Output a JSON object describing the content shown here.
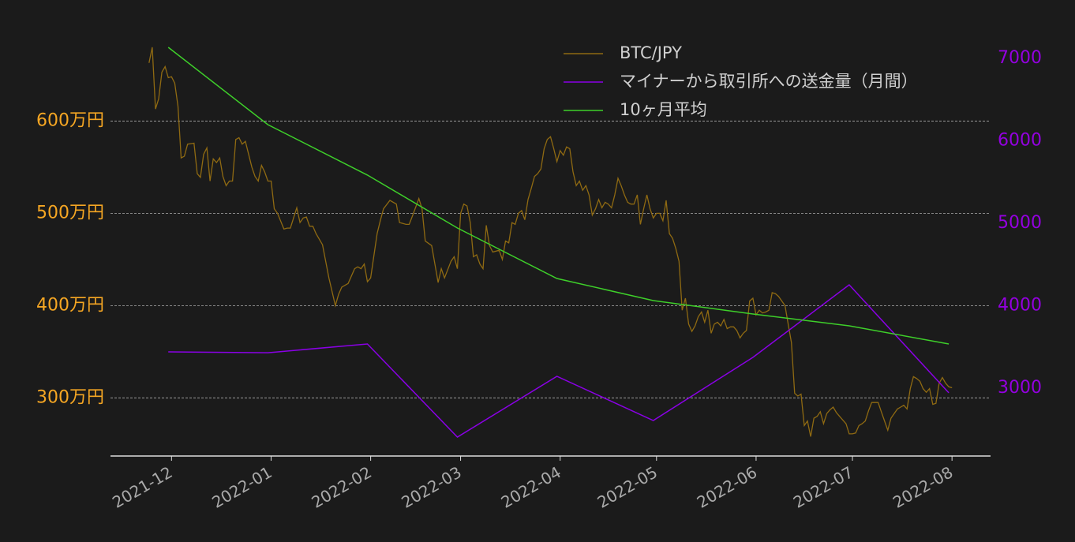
{
  "chart_data": {
    "type": "line",
    "xlim": [
      "2021-11-12",
      "2022-08-13"
    ],
    "xticks": [
      "2021-12",
      "2022-01",
      "2022-02",
      "2022-03",
      "2022-04",
      "2022-05",
      "2022-06",
      "2022-07",
      "2022-08"
    ],
    "ylim": [
      237,
      697
    ],
    "yticks": [
      {
        "value": 300,
        "label": "300万円"
      },
      {
        "value": 400,
        "label": "400万円"
      },
      {
        "value": 500,
        "label": "500万円"
      },
      {
        "value": 600,
        "label": "600万円"
      }
    ],
    "y2lim": [
      2177,
      7325
    ],
    "y2ticks": [
      3000,
      4000,
      5000,
      6000,
      7000
    ],
    "grid": true,
    "legend": "upper right",
    "ytick_color": "#f5a623",
    "y2tick_color": "#9400e0",
    "series": [
      {
        "name": "BTC/JPY",
        "color": "#8f6a12",
        "axis": "y",
        "x": [
          "2021-11-24",
          "2021-11-25",
          "2021-11-26",
          "2021-11-27",
          "2021-11-28",
          "2021-11-29",
          "2021-11-30",
          "2021-12-01",
          "2021-12-02",
          "2021-12-03",
          "2021-12-04",
          "2021-12-05",
          "2021-12-06",
          "2021-12-08",
          "2021-12-09",
          "2021-12-10",
          "2021-12-11",
          "2021-12-12",
          "2021-12-13",
          "2021-12-14",
          "2021-12-15",
          "2021-12-16",
          "2021-12-17",
          "2021-12-18",
          "2021-12-19",
          "2021-12-20",
          "2021-12-21",
          "2021-12-22",
          "2021-12-23",
          "2021-12-24",
          "2021-12-26",
          "2021-12-27",
          "2021-12-28",
          "2021-12-29",
          "2021-12-30",
          "2021-12-31",
          "2022-01-01",
          "2022-01-02",
          "2022-01-03",
          "2022-01-05",
          "2022-01-06",
          "2022-01-07",
          "2022-01-09",
          "2022-01-10",
          "2022-01-11",
          "2022-01-12",
          "2022-01-13",
          "2022-01-14",
          "2022-01-15",
          "2022-01-17",
          "2022-01-19",
          "2022-01-21",
          "2022-01-22",
          "2022-01-23",
          "2022-01-25",
          "2022-01-27",
          "2022-01-28",
          "2022-01-29",
          "2022-01-30",
          "2022-01-31",
          "2022-02-01",
          "2022-02-03",
          "2022-02-04",
          "2022-02-05",
          "2022-02-07",
          "2022-02-09",
          "2022-02-10",
          "2022-02-12",
          "2022-02-13",
          "2022-02-14",
          "2022-02-16",
          "2022-02-17",
          "2022-02-18",
          "2022-02-20",
          "2022-02-21",
          "2022-02-22",
          "2022-02-23",
          "2022-02-24",
          "2022-02-26",
          "2022-02-27",
          "2022-02-28",
          "2022-03-01",
          "2022-03-02",
          "2022-03-03",
          "2022-03-04",
          "2022-03-05",
          "2022-03-06",
          "2022-03-07",
          "2022-03-08",
          "2022-03-09",
          "2022-03-10",
          "2022-03-11",
          "2022-03-13",
          "2022-03-14",
          "2022-03-15",
          "2022-03-16",
          "2022-03-17",
          "2022-03-18",
          "2022-03-19",
          "2022-03-20",
          "2022-03-21",
          "2022-03-22",
          "2022-03-23",
          "2022-03-24",
          "2022-03-25",
          "2022-03-26",
          "2022-03-27",
          "2022-03-28",
          "2022-03-29",
          "2022-03-30",
          "2022-03-31",
          "2022-04-01",
          "2022-04-02",
          "2022-04-03",
          "2022-04-04",
          "2022-04-05",
          "2022-04-06",
          "2022-04-07",
          "2022-04-08",
          "2022-04-09",
          "2022-04-10",
          "2022-04-11",
          "2022-04-12",
          "2022-04-13",
          "2022-04-14",
          "2022-04-15",
          "2022-04-16",
          "2022-04-17",
          "2022-04-18",
          "2022-04-19",
          "2022-04-20",
          "2022-04-21",
          "2022-04-22",
          "2022-04-23",
          "2022-04-24",
          "2022-04-25",
          "2022-04-26",
          "2022-04-27",
          "2022-04-28",
          "2022-04-29",
          "2022-04-30",
          "2022-05-01",
          "2022-05-02",
          "2022-05-03",
          "2022-05-04",
          "2022-05-05",
          "2022-05-06",
          "2022-05-07",
          "2022-05-08",
          "2022-05-09",
          "2022-05-10",
          "2022-05-11",
          "2022-05-12",
          "2022-05-13",
          "2022-05-14",
          "2022-05-15",
          "2022-05-16",
          "2022-05-17",
          "2022-05-18",
          "2022-05-19",
          "2022-05-20",
          "2022-05-21",
          "2022-05-22",
          "2022-05-23",
          "2022-05-24",
          "2022-05-25",
          "2022-05-26",
          "2022-05-27",
          "2022-05-28",
          "2022-05-29",
          "2022-05-30",
          "2022-05-31",
          "2022-06-01",
          "2022-06-02",
          "2022-06-03",
          "2022-06-04",
          "2022-06-05",
          "2022-06-06",
          "2022-06-07",
          "2022-06-08",
          "2022-06-09",
          "2022-06-10",
          "2022-06-11",
          "2022-06-12",
          "2022-06-13",
          "2022-06-14",
          "2022-06-15",
          "2022-06-16",
          "2022-06-17",
          "2022-06-18",
          "2022-06-19",
          "2022-06-20",
          "2022-06-21",
          "2022-06-22",
          "2022-06-23",
          "2022-06-24",
          "2022-06-25",
          "2022-06-26",
          "2022-06-27",
          "2022-06-28",
          "2022-06-29",
          "2022-06-30",
          "2022-07-01",
          "2022-07-02",
          "2022-07-03",
          "2022-07-04",
          "2022-07-05",
          "2022-07-06",
          "2022-07-07",
          "2022-07-08",
          "2022-07-09",
          "2022-07-10",
          "2022-07-11",
          "2022-07-12",
          "2022-07-13",
          "2022-07-14",
          "2022-07-15",
          "2022-07-16",
          "2022-07-17",
          "2022-07-18",
          "2022-07-19",
          "2022-07-20",
          "2022-07-21",
          "2022-07-22",
          "2022-07-23",
          "2022-07-24",
          "2022-07-25",
          "2022-07-26",
          "2022-07-27",
          "2022-07-28",
          "2022-07-29",
          "2022-07-30",
          "2022-07-31",
          "2022-08-01"
        ],
        "values": [
          663,
          680,
          613,
          624,
          653,
          659,
          647,
          648,
          641,
          616,
          560,
          562,
          575,
          576,
          543,
          539,
          564,
          571,
          535,
          559,
          555,
          560,
          540,
          530,
          535,
          535,
          580,
          582,
          575,
          578,
          550,
          540,
          535,
          552,
          545,
          535,
          535,
          505,
          500,
          483,
          484,
          484,
          506,
          490,
          495,
          496,
          486,
          486,
          478,
          466,
          430,
          400,
          412,
          420,
          424,
          440,
          442,
          440,
          445,
          426,
          430,
          478,
          492,
          505,
          514,
          510,
          490,
          488,
          488,
          497,
          516,
          505,
          470,
          465,
          445,
          425,
          440,
          430,
          448,
          453,
          440,
          500,
          510,
          508,
          490,
          453,
          455,
          445,
          440,
          487,
          465,
          458,
          460,
          450,
          470,
          468,
          490,
          488,
          500,
          503,
          493,
          515,
          527,
          540,
          543,
          548,
          570,
          580,
          583,
          570,
          556,
          568,
          563,
          572,
          570,
          545,
          530,
          535,
          525,
          530,
          520,
          498,
          505,
          515,
          506,
          512,
          510,
          506,
          520,
          538,
          530,
          520,
          512,
          510,
          510,
          520,
          488,
          505,
          520,
          505,
          495,
          500,
          500,
          492,
          514,
          478,
          473,
          462,
          448,
          395,
          408,
          380,
          372,
          378,
          388,
          393,
          382,
          395,
          370,
          380,
          382,
          378,
          385,
          375,
          377,
          377,
          373,
          365,
          370,
          373,
          405,
          408,
          390,
          395,
          392,
          393,
          395,
          414,
          413,
          410,
          405,
          400,
          380,
          360,
          305,
          302,
          304,
          270,
          275,
          258,
          278,
          280,
          285,
          272,
          283,
          287,
          290,
          284,
          280,
          276,
          272,
          261,
          261,
          262,
          270,
          272,
          275,
          286,
          295,
          295,
          295,
          285,
          275,
          265,
          278,
          283,
          288,
          290,
          292,
          288,
          310,
          323,
          321,
          318,
          310,
          306,
          310,
          293,
          294,
          316,
          322,
          316,
          312,
          311
        ]
      },
      {
        "name": "マイナーから取引所への送金量（月間）",
        "color": "#8a00e6",
        "axis": "y2",
        "x": [
          "2021-11-30",
          "2021-12-31",
          "2022-01-31",
          "2022-02-28",
          "2022-03-31",
          "2022-04-30",
          "2022-05-31",
          "2022-06-30",
          "2022-07-31"
        ],
        "values": [
          3440,
          3430,
          3536,
          2407,
          3143,
          2608,
          3373,
          4253,
          2943
        ]
      },
      {
        "name": "10ヶ月平均",
        "color": "#3ecf2a",
        "axis": "y2",
        "x": [
          "2021-11-30",
          "2021-12-31",
          "2022-01-31",
          "2022-02-28",
          "2022-03-31",
          "2022-04-30",
          "2022-05-31",
          "2022-06-30",
          "2022-07-31"
        ],
        "values": [
          7134,
          6196,
          5584,
          4942,
          4330,
          4062,
          3899,
          3756,
          3536
        ]
      }
    ]
  }
}
